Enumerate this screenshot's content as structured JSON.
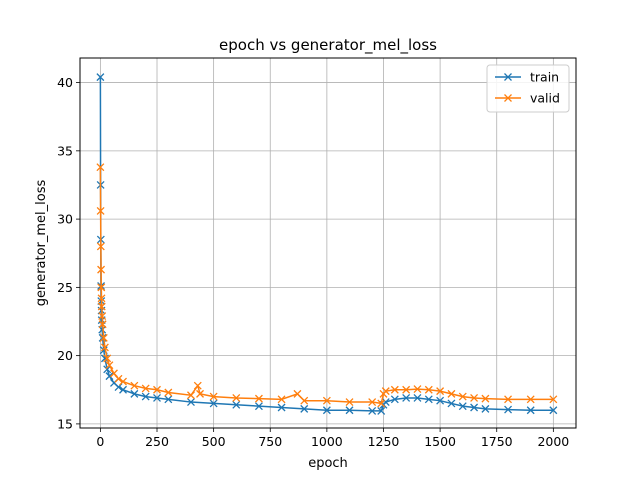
{
  "chart_data": {
    "type": "line",
    "title": "epoch vs generator_mel_loss",
    "xlabel": "epoch",
    "ylabel": "generator_mel_loss",
    "xlim": [
      -90,
      2100
    ],
    "ylim": [
      14.7,
      41.8
    ],
    "xticks": [
      0,
      250,
      500,
      750,
      1000,
      1250,
      1500,
      1750,
      2000
    ],
    "yticks": [
      15,
      20,
      25,
      30,
      35,
      40
    ],
    "grid": true,
    "legend_position": "upper-right",
    "series": [
      {
        "name": "train",
        "color": "#1f77b4",
        "marker": "x",
        "x": [
          0,
          1,
          2,
          3,
          4,
          5,
          6,
          8,
          10,
          15,
          20,
          30,
          40,
          60,
          80,
          100,
          150,
          200,
          250,
          300,
          400,
          500,
          600,
          700,
          800,
          900,
          1000,
          1100,
          1200,
          1240,
          1250,
          1260,
          1300,
          1350,
          1400,
          1450,
          1500,
          1550,
          1600,
          1650,
          1700,
          1800,
          1900,
          2000
        ],
        "values": [
          40.4,
          32.5,
          28.5,
          25.1,
          24.0,
          23.3,
          22.6,
          21.9,
          21.3,
          20.4,
          19.8,
          19.0,
          18.5,
          18.0,
          17.7,
          17.5,
          17.2,
          17.0,
          16.9,
          16.8,
          16.6,
          16.5,
          16.4,
          16.3,
          16.2,
          16.1,
          16.0,
          16.0,
          15.95,
          15.95,
          16.4,
          16.6,
          16.8,
          16.9,
          16.9,
          16.8,
          16.7,
          16.5,
          16.3,
          16.2,
          16.1,
          16.05,
          16.0,
          16.0
        ]
      },
      {
        "name": "valid",
        "color": "#ff7f0e",
        "marker": "x",
        "x": [
          0,
          1,
          2,
          3,
          4,
          5,
          6,
          8,
          10,
          15,
          20,
          30,
          40,
          60,
          80,
          100,
          150,
          200,
          250,
          300,
          400,
          430,
          440,
          500,
          600,
          700,
          800,
          870,
          900,
          1000,
          1100,
          1200,
          1240,
          1250,
          1260,
          1300,
          1350,
          1400,
          1450,
          1500,
          1550,
          1600,
          1650,
          1700,
          1800,
          1900,
          2000
        ],
        "values": [
          33.8,
          30.6,
          28.0,
          26.3,
          25.0,
          24.2,
          23.6,
          22.9,
          22.3,
          21.3,
          20.6,
          19.8,
          19.3,
          18.7,
          18.3,
          18.1,
          17.8,
          17.6,
          17.5,
          17.3,
          17.1,
          17.8,
          17.2,
          17.0,
          16.9,
          16.85,
          16.8,
          17.2,
          16.7,
          16.7,
          16.6,
          16.6,
          16.5,
          17.2,
          17.4,
          17.5,
          17.5,
          17.55,
          17.5,
          17.4,
          17.2,
          17.0,
          16.9,
          16.85,
          16.8,
          16.8,
          16.8
        ]
      }
    ]
  }
}
